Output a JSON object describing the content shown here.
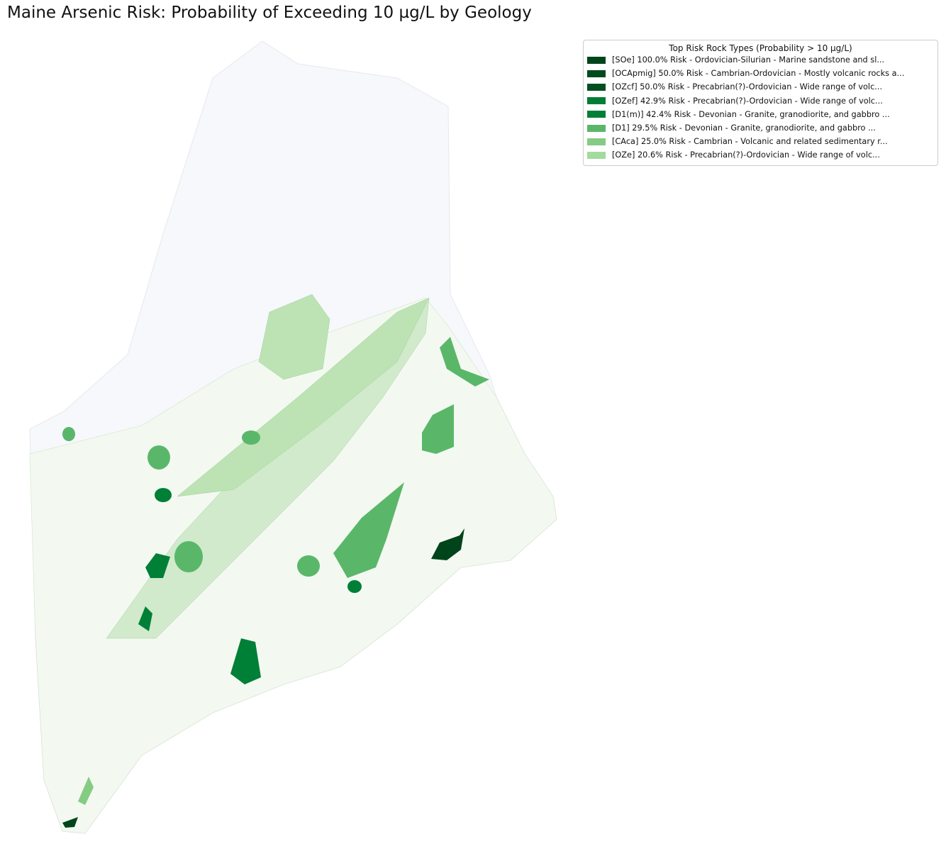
{
  "title": "Maine Arsenic Risk: Probability of Exceeding 10 µg/L by Geology",
  "legend": {
    "title": "Top Risk Rock Types (Probability > 10 µg/L)",
    "entries": [
      {
        "label": "[SOe] 100.0% Risk - Ordovician-Silurian - Marine sandstone and sl...",
        "color": "#00441b"
      },
      {
        "label": "[OCApmig] 50.0% Risk - Cambrian-Ordovician - Mostly volcanic rocks a...",
        "color": "#004a1e"
      },
      {
        "label": "[OZcf] 50.0% Risk - Precabrian(?)-Ordovician - Wide range of volc...",
        "color": "#004f20"
      },
      {
        "label": "[OZef] 42.9% Risk - Precabrian(?)-Ordovician - Wide range of volc...",
        "color": "#007d35"
      },
      {
        "label": "[D1(m)] 42.4% Risk - Devonian - Granite, granodiorite, and gabbro ...",
        "color": "#007f37"
      },
      {
        "label": "[D1] 29.5% Risk - Devonian - Granite, granodiorite, and gabbro ...",
        "color": "#5ab769"
      },
      {
        "label": "[CAca] 25.0% Risk - Cambrian - Volcanic and related sedimentary r...",
        "color": "#84cc83"
      },
      {
        "label": "[OZe] 20.6% Risk - Precabrian(?)-Ordovician - Wide range of volc...",
        "color": "#a3da9d"
      }
    ]
  }
}
